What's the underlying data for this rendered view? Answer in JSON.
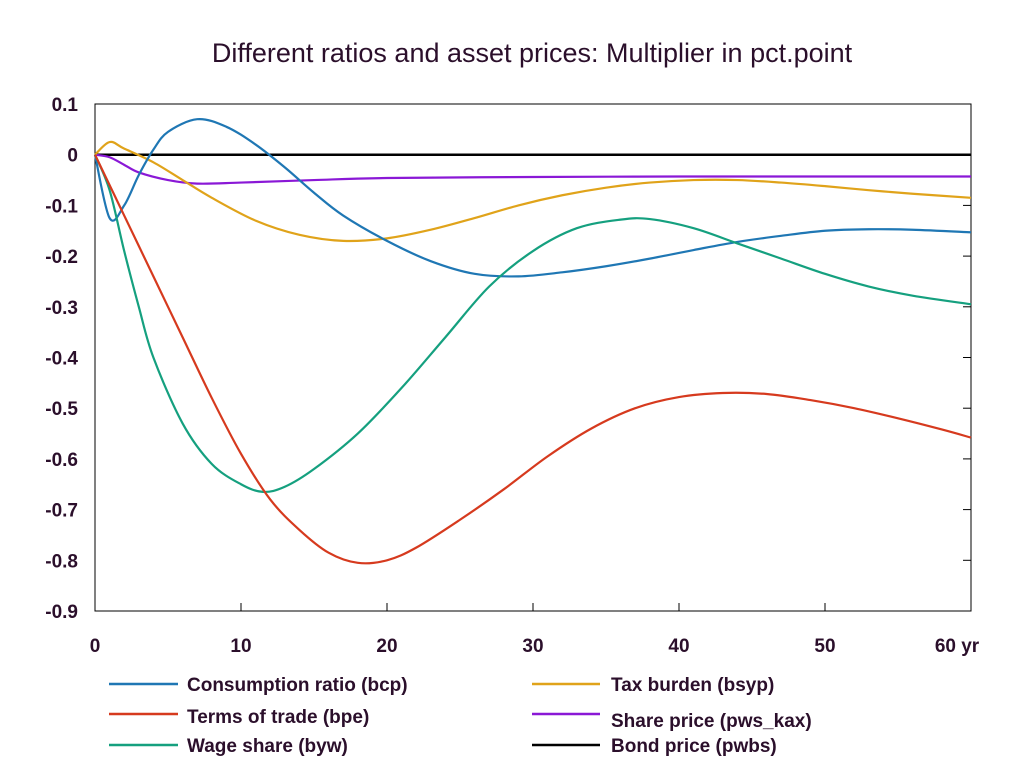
{
  "chart_data": {
    "type": "line",
    "title": "Different ratios and asset prices: Multiplier in pct.point",
    "xlabel": "",
    "ylabel": "",
    "x_unit_label": "yr",
    "xlim": [
      0,
      60
    ],
    "ylim": [
      -0.9,
      0.1
    ],
    "x_ticks": [
      0,
      10,
      20,
      30,
      40,
      50,
      60
    ],
    "x_tick_labels": [
      "0",
      "10",
      "20",
      "30",
      "40",
      "50",
      "60 yr"
    ],
    "y_ticks": [
      0.1,
      0,
      -0.1,
      -0.2,
      -0.3,
      -0.4,
      -0.5,
      -0.6,
      -0.7,
      -0.8,
      -0.9
    ],
    "y_tick_labels": [
      "0.1",
      "0",
      "-0.1",
      "-0.2",
      "-0.3",
      "-0.4",
      "-0.5",
      "-0.6",
      "-0.7",
      "-0.8",
      "-0.9"
    ],
    "grid": false,
    "legend_position": "bottom",
    "series": [
      {
        "name": "Consumption ratio (bcp)",
        "color": "#1f77b4",
        "points": [
          [
            0,
            0
          ],
          [
            1,
            -0.125
          ],
          [
            2,
            -0.1
          ],
          [
            3,
            -0.04
          ],
          [
            4,
            0.01
          ],
          [
            5,
            0.045
          ],
          [
            7,
            0.07
          ],
          [
            9,
            0.055
          ],
          [
            11,
            0.02
          ],
          [
            13,
            -0.025
          ],
          [
            15,
            -0.075
          ],
          [
            17,
            -0.12
          ],
          [
            20,
            -0.17
          ],
          [
            23,
            -0.21
          ],
          [
            26,
            -0.235
          ],
          [
            29,
            -0.24
          ],
          [
            32,
            -0.232
          ],
          [
            35,
            -0.22
          ],
          [
            38,
            -0.205
          ],
          [
            41,
            -0.188
          ],
          [
            44,
            -0.172
          ],
          [
            47,
            -0.16
          ],
          [
            50,
            -0.15
          ],
          [
            53,
            -0.147
          ],
          [
            56,
            -0.148
          ],
          [
            60,
            -0.153
          ]
        ]
      },
      {
        "name": "Terms of trade (bpe)",
        "color": "#d63a1e",
        "points": [
          [
            0,
            0
          ],
          [
            2,
            -0.12
          ],
          [
            4,
            -0.24
          ],
          [
            6,
            -0.36
          ],
          [
            8,
            -0.48
          ],
          [
            10,
            -0.59
          ],
          [
            12,
            -0.68
          ],
          [
            14,
            -0.74
          ],
          [
            16,
            -0.785
          ],
          [
            18,
            -0.805
          ],
          [
            20,
            -0.8
          ],
          [
            22,
            -0.775
          ],
          [
            25,
            -0.72
          ],
          [
            28,
            -0.66
          ],
          [
            31,
            -0.595
          ],
          [
            34,
            -0.54
          ],
          [
            37,
            -0.5
          ],
          [
            40,
            -0.478
          ],
          [
            43,
            -0.47
          ],
          [
            46,
            -0.472
          ],
          [
            49,
            -0.484
          ],
          [
            52,
            -0.5
          ],
          [
            55,
            -0.52
          ],
          [
            58,
            -0.542
          ],
          [
            60,
            -0.558
          ]
        ]
      },
      {
        "name": "Wage share (byw)",
        "color": "#15a07f",
        "points": [
          [
            0,
            0
          ],
          [
            1,
            -0.07
          ],
          [
            2,
            -0.19
          ],
          [
            3,
            -0.3
          ],
          [
            4,
            -0.4
          ],
          [
            6,
            -0.53
          ],
          [
            8,
            -0.61
          ],
          [
            10,
            -0.65
          ],
          [
            11.5,
            -0.665
          ],
          [
            13,
            -0.655
          ],
          [
            15,
            -0.62
          ],
          [
            18,
            -0.55
          ],
          [
            21,
            -0.46
          ],
          [
            24,
            -0.36
          ],
          [
            27,
            -0.26
          ],
          [
            30,
            -0.19
          ],
          [
            33,
            -0.145
          ],
          [
            36,
            -0.128
          ],
          [
            38,
            -0.127
          ],
          [
            41,
            -0.145
          ],
          [
            44,
            -0.175
          ],
          [
            47,
            -0.205
          ],
          [
            50,
            -0.235
          ],
          [
            53,
            -0.26
          ],
          [
            56,
            -0.278
          ],
          [
            60,
            -0.295
          ]
        ]
      },
      {
        "name": "Tax burden (bsyp)",
        "color": "#e0a31a",
        "points": [
          [
            0,
            0
          ],
          [
            1,
            0.025
          ],
          [
            2,
            0.012
          ],
          [
            4,
            -0.015
          ],
          [
            6,
            -0.05
          ],
          [
            8,
            -0.085
          ],
          [
            11,
            -0.13
          ],
          [
            14,
            -0.158
          ],
          [
            17,
            -0.17
          ],
          [
            20,
            -0.165
          ],
          [
            23,
            -0.148
          ],
          [
            26,
            -0.125
          ],
          [
            29,
            -0.1
          ],
          [
            32,
            -0.08
          ],
          [
            35,
            -0.065
          ],
          [
            38,
            -0.055
          ],
          [
            41,
            -0.05
          ],
          [
            44,
            -0.05
          ],
          [
            47,
            -0.055
          ],
          [
            50,
            -0.062
          ],
          [
            53,
            -0.07
          ],
          [
            56,
            -0.077
          ],
          [
            60,
            -0.085
          ]
        ]
      },
      {
        "name": "Share price (pws_kax)",
        "color": "#8a18d6",
        "points": [
          [
            0,
            0
          ],
          [
            1,
            -0.005
          ],
          [
            2,
            -0.02
          ],
          [
            3,
            -0.035
          ],
          [
            5,
            -0.05
          ],
          [
            7,
            -0.057
          ],
          [
            10,
            -0.055
          ],
          [
            15,
            -0.05
          ],
          [
            20,
            -0.046
          ],
          [
            30,
            -0.044
          ],
          [
            40,
            -0.043
          ],
          [
            50,
            -0.043
          ],
          [
            60,
            -0.043
          ]
        ]
      },
      {
        "name": "Bond price (pwbs)",
        "color": "#000000",
        "points": [
          [
            0,
            0
          ],
          [
            60,
            0
          ]
        ]
      }
    ]
  }
}
